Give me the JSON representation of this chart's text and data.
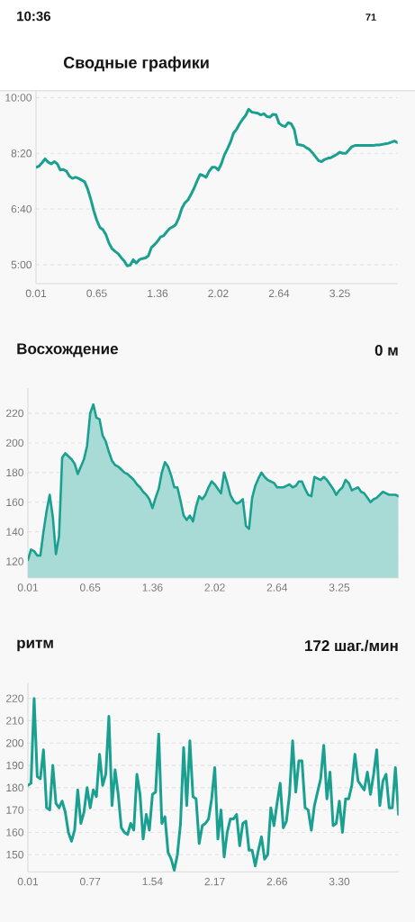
{
  "chart_data": [
    {
      "type": "line",
      "title": "Сводные графики",
      "annotations": [
        "10:36",
        "71"
      ],
      "color": "#1aa090",
      "grid": "y",
      "categories": [
        "0.01",
        null,
        null,
        null,
        null,
        null,
        null,
        null,
        null,
        null,
        null,
        null,
        null,
        null,
        null,
        null,
        null,
        null,
        null,
        null,
        "0.65",
        null,
        null,
        null,
        null,
        null,
        null,
        null,
        null,
        null,
        null,
        null,
        null,
        null,
        null,
        null,
        null,
        null,
        null,
        null,
        "1.36",
        null,
        null,
        null,
        null,
        null,
        null,
        null,
        null,
        null,
        null,
        null,
        null,
        null,
        null,
        null,
        null,
        null,
        null,
        null,
        "2.02",
        null,
        null,
        null,
        null,
        null,
        null,
        null,
        null,
        null,
        null,
        null,
        null,
        null,
        null,
        null,
        null,
        null,
        null,
        null,
        "2.64",
        null,
        null,
        null,
        null,
        null,
        null,
        null,
        null,
        null,
        null,
        null,
        null,
        null,
        null,
        null,
        null,
        null,
        null,
        null,
        "3.25",
        null,
        null,
        null,
        null,
        null,
        null,
        null,
        null,
        null,
        null,
        null,
        null,
        null,
        null,
        null,
        null,
        null,
        null,
        null
      ],
      "values": [
        475,
        477,
        483,
        490,
        484,
        481,
        485,
        481,
        470,
        471,
        468,
        459,
        455,
        457,
        455,
        452,
        449,
        436,
        418,
        397,
        380,
        367,
        363,
        354,
        339,
        329,
        324,
        320,
        313,
        307,
        298,
        299,
        309,
        303,
        309,
        311,
        312,
        316,
        331,
        336,
        342,
        350,
        352,
        359,
        365,
        368,
        372,
        384,
        401,
        411,
        416,
        426,
        437,
        450,
        462,
        460,
        457,
        468,
        475,
        475,
        470,
        481,
        497,
        508,
        520,
        536,
        543,
        553,
        561,
        568,
        579,
        574,
        573,
        572,
        569,
        571,
        566,
        565,
        570,
        569,
        554,
        550,
        548,
        555,
        553,
        543,
        516,
        515,
        514,
        510,
        507,
        501,
        494,
        487,
        485,
        489,
        491,
        492,
        495,
        498,
        502,
        500,
        500,
        506,
        512,
        514,
        514,
        514,
        514,
        514,
        514,
        514,
        515,
        515,
        516,
        517,
        518,
        520,
        522,
        519
      ],
      "ylim": [
        266,
        612
      ],
      "yticks": [
        {
          "value": 300,
          "label": "5:00"
        },
        {
          "value": 400,
          "label": "6:40"
        },
        {
          "value": 500,
          "label": "8:20"
        },
        {
          "value": 600,
          "label": "10:00"
        }
      ]
    },
    {
      "type": "area",
      "title": "Восхождение",
      "annotations": [
        "0 м"
      ],
      "color": "#1aa090",
      "grid": "y",
      "categories": [
        "0.01",
        null,
        null,
        null,
        null,
        null,
        null,
        null,
        null,
        null,
        null,
        null,
        null,
        null,
        null,
        null,
        null,
        null,
        null,
        null,
        "0.65",
        null,
        null,
        null,
        null,
        null,
        null,
        null,
        null,
        null,
        null,
        null,
        null,
        null,
        null,
        null,
        null,
        null,
        null,
        null,
        "1.36",
        null,
        null,
        null,
        null,
        null,
        null,
        null,
        null,
        null,
        null,
        null,
        null,
        null,
        null,
        null,
        null,
        null,
        null,
        null,
        "2.02",
        null,
        null,
        null,
        null,
        null,
        null,
        null,
        null,
        null,
        null,
        null,
        null,
        null,
        null,
        null,
        null,
        null,
        null,
        null,
        "2.64",
        null,
        null,
        null,
        null,
        null,
        null,
        null,
        null,
        null,
        null,
        null,
        null,
        null,
        null,
        null,
        null,
        null,
        null,
        null,
        "3.25",
        null,
        null,
        null,
        null,
        null,
        null,
        null,
        null,
        null,
        null,
        null,
        null,
        null,
        null,
        null,
        null,
        null,
        null,
        null
      ],
      "values": [
        121,
        128,
        127,
        124,
        124,
        140,
        154,
        165,
        150,
        125,
        137,
        190,
        193,
        191,
        189,
        186,
        179,
        184,
        189,
        198,
        220,
        226,
        217,
        216,
        205,
        201,
        194,
        188,
        185,
        184,
        182,
        180,
        179,
        177,
        175,
        172,
        170,
        167,
        165,
        162,
        156,
        163,
        169,
        180,
        187,
        184,
        178,
        170,
        170,
        161,
        151,
        148,
        151,
        147,
        157,
        164,
        162,
        165,
        170,
        174,
        172,
        169,
        166,
        180,
        173,
        165,
        161,
        159,
        160,
        162,
        144,
        142,
        163,
        171,
        176,
        180,
        177,
        175,
        174,
        173,
        170,
        170,
        170,
        171,
        172,
        170,
        171,
        174,
        174,
        169,
        165,
        164,
        177,
        176,
        175,
        177,
        175,
        172,
        169,
        165,
        168,
        170,
        175,
        173,
        168,
        169,
        170,
        167,
        166,
        163,
        160,
        162,
        163,
        165,
        167,
        166,
        165,
        165,
        165,
        164
      ],
      "ylim": [
        109,
        237
      ],
      "yticks": [
        120,
        140,
        160,
        180,
        200,
        220
      ]
    },
    {
      "type": "line",
      "title": "ритм",
      "annotations": [
        "172 шаг./мин"
      ],
      "color": "#1aa090",
      "grid": "y",
      "categories": [
        "0.01",
        null,
        null,
        null,
        null,
        null,
        null,
        null,
        null,
        null,
        null,
        null,
        null,
        null,
        null,
        null,
        null,
        null,
        null,
        null,
        "0.77",
        null,
        null,
        null,
        null,
        null,
        null,
        null,
        null,
        null,
        null,
        null,
        null,
        null,
        null,
        null,
        null,
        null,
        null,
        null,
        "1.54",
        null,
        null,
        null,
        null,
        null,
        null,
        null,
        null,
        null,
        null,
        null,
        null,
        null,
        null,
        null,
        null,
        null,
        null,
        null,
        "2.17",
        null,
        null,
        null,
        null,
        null,
        null,
        null,
        null,
        null,
        null,
        null,
        null,
        null,
        null,
        null,
        null,
        null,
        null,
        null,
        "2.66",
        null,
        null,
        null,
        null,
        null,
        null,
        null,
        null,
        null,
        null,
        null,
        null,
        null,
        null,
        null,
        null,
        null,
        null,
        null,
        "3.30",
        null,
        null,
        null,
        null,
        null,
        null,
        null,
        null,
        null,
        null,
        null,
        null,
        null,
        null,
        null,
        null,
        null,
        null,
        null
      ],
      "values": [
        181,
        182,
        220,
        185,
        184,
        197,
        171,
        170,
        190,
        173,
        171,
        174,
        169,
        160,
        156,
        161,
        179,
        164,
        169,
        180,
        171,
        179,
        176,
        195,
        181,
        186,
        212,
        172,
        188,
        177,
        162,
        160,
        159,
        164,
        161,
        186,
        177,
        157,
        168,
        161,
        177,
        178,
        204,
        164,
        167,
        151,
        148,
        143,
        150,
        164,
        198,
        172,
        201,
        176,
        175,
        155,
        163,
        164,
        166,
        175,
        189,
        157,
        170,
        149,
        160,
        166,
        166,
        168,
        154,
        164,
        165,
        152,
        152,
        145,
        152,
        158,
        148,
        150,
        171,
        163,
        173,
        182,
        162,
        165,
        177,
        201,
        178,
        192,
        192,
        171,
        170,
        161,
        172,
        178,
        184,
        199,
        175,
        187,
        163,
        164,
        174,
        160,
        175,
        175,
        181,
        195,
        183,
        181,
        179,
        187,
        177,
        186,
        197,
        172,
        183,
        186,
        171,
        171,
        189,
        168
      ],
      "ylim": [
        142.3,
        227
      ],
      "yticks": [
        150,
        160,
        170,
        180,
        190,
        200,
        210,
        220
      ]
    }
  ]
}
